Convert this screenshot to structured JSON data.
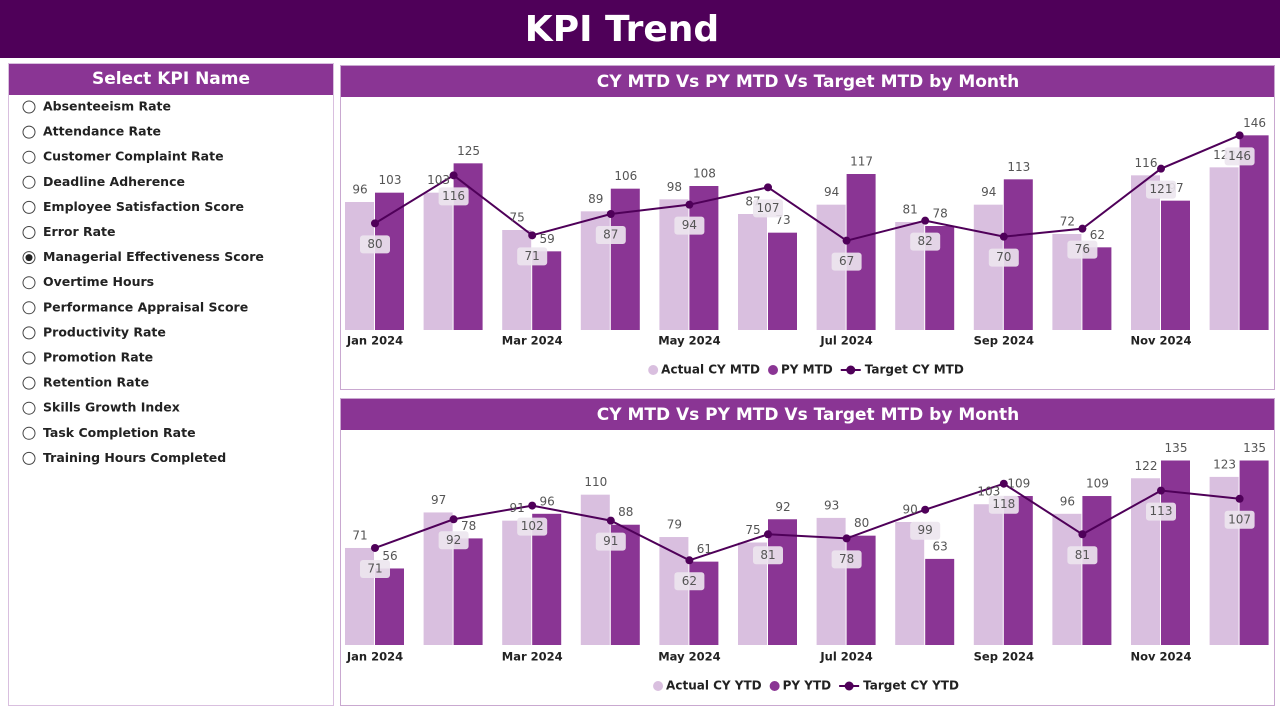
{
  "header": {
    "title": "KPI Trend"
  },
  "slicer": {
    "title": "Select KPI Name",
    "selected_index": 6,
    "items": [
      "Absenteeism Rate",
      "Attendance Rate",
      "Customer Complaint Rate",
      "Deadline Adherence",
      "Employee Satisfaction Score",
      "Error Rate",
      "Managerial Effectiveness Score",
      "Overtime Hours",
      "Performance Appraisal Score",
      "Productivity Rate",
      "Promotion Rate",
      "Retention Rate",
      "Skills Growth Index",
      "Task Completion Rate",
      "Training Hours Completed"
    ]
  },
  "chart_data": [
    {
      "type": "bar_line",
      "title": "CY MTD Vs PY MTD Vs Target MTD by Month",
      "categories": [
        "Jan 2024",
        null,
        "Mar 2024",
        null,
        "May 2024",
        null,
        "Jul 2024",
        null,
        "Sep 2024",
        null,
        "Nov 2024",
        null
      ],
      "ylim": [
        0,
        165
      ],
      "series": [
        {
          "name": "Actual CY MTD",
          "type": "bar",
          "color": "#d9bfdf",
          "values": [
            96,
            103,
            75,
            89,
            98,
            87,
            94,
            81,
            94,
            72,
            116,
            122
          ]
        },
        {
          "name": "PY MTD",
          "type": "bar",
          "color": "#8a3594",
          "values": [
            103,
            125,
            59,
            106,
            108,
            73,
            117,
            78,
            113,
            62,
            97,
            146
          ]
        },
        {
          "name": "Target CY MTD",
          "type": "line",
          "color": "#4f0059",
          "values": [
            80,
            116,
            71,
            87,
            94,
            107,
            67,
            82,
            70,
            76,
            121,
            146
          ]
        }
      ]
    },
    {
      "type": "bar_line",
      "title": "CY MTD Vs PY MTD Vs Target MTD by Month",
      "categories": [
        "Jan 2024",
        null,
        "Mar 2024",
        null,
        "May 2024",
        null,
        "Jul 2024",
        null,
        "Sep 2024",
        null,
        "Nov 2024",
        null
      ],
      "ylim": [
        0,
        150
      ],
      "series": [
        {
          "name": "Actual CY YTD",
          "type": "bar",
          "color": "#d9bfdf",
          "values": [
            71,
            97,
            91,
            110,
            79,
            75,
            93,
            90,
            103,
            96,
            122,
            123
          ]
        },
        {
          "name": "PY YTD",
          "type": "bar",
          "color": "#8a3594",
          "values": [
            56,
            78,
            96,
            88,
            61,
            92,
            80,
            63,
            109,
            109,
            135,
            135
          ]
        },
        {
          "name": "Target CY YTD",
          "type": "line",
          "color": "#4f0059",
          "values": [
            71,
            92,
            102,
            91,
            62,
            81,
            78,
            99,
            118,
            81,
            113,
            107
          ]
        }
      ]
    }
  ]
}
